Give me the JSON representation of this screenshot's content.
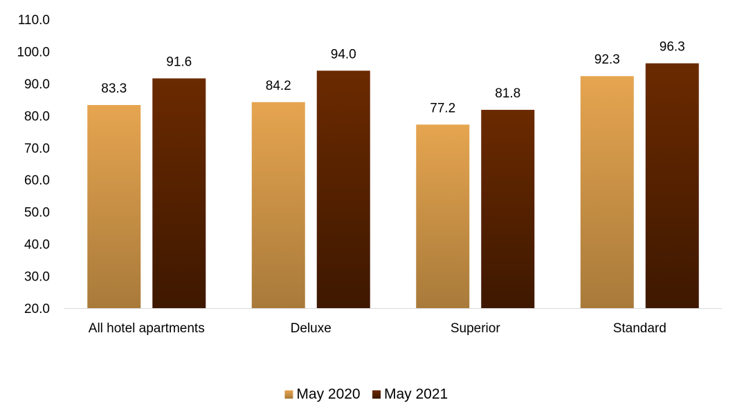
{
  "chart_data": {
    "type": "bar",
    "title": "",
    "xlabel": "",
    "ylabel": "",
    "categories": [
      "All hotel apartments",
      "Deluxe",
      "Superior",
      "Standard"
    ],
    "series": [
      {
        "name": "May 2020",
        "values": [
          83.3,
          84.2,
          77.2,
          92.3
        ],
        "color_top": "#E6A550",
        "color_bottom": "#A87A3A"
      },
      {
        "name": "May 2021",
        "values": [
          91.6,
          94.0,
          81.8,
          96.3
        ],
        "color_top": "#6B2A00",
        "color_bottom": "#3E1800"
      }
    ],
    "ylim": [
      20.0,
      110.0
    ],
    "yticks": [
      "20.0",
      "30.0",
      "40.0",
      "50.0",
      "60.0",
      "70.0",
      "80.0",
      "90.0",
      "100.0",
      "110.0"
    ],
    "data_labels": [
      [
        "83.3",
        "84.2",
        "77.2",
        "92.3"
      ],
      [
        "91.6",
        "94.0",
        "81.8",
        "96.3"
      ]
    ],
    "grid": false,
    "legend": "bottom-center",
    "axis_color": "#d9d9d9"
  }
}
